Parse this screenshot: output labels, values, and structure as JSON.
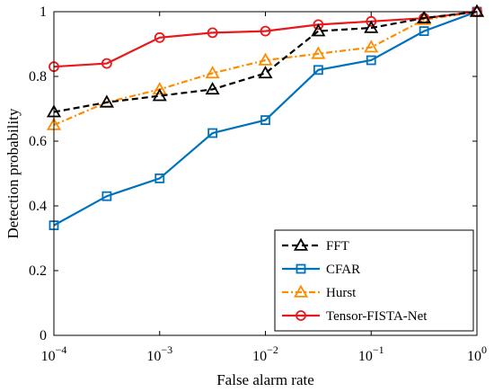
{
  "chart_data": {
    "type": "line",
    "xlabel": "False alarm rate",
    "ylabel": "Detection probability",
    "x_scale": "log",
    "xlim": [
      0.0001,
      1
    ],
    "ylim": [
      0,
      1
    ],
    "x": [
      0.0001,
      0.0003162,
      0.001,
      0.003162,
      0.01,
      0.03162,
      0.1,
      0.3162,
      1
    ],
    "x_ticks": [
      {
        "value": 0.0001,
        "base": "10",
        "exp": "−4"
      },
      {
        "value": 0.001,
        "base": "10",
        "exp": "−3"
      },
      {
        "value": 0.01,
        "base": "10",
        "exp": "−2"
      },
      {
        "value": 0.1,
        "base": "10",
        "exp": "−1"
      },
      {
        "value": 1,
        "base": "10",
        "exp": "0"
      }
    ],
    "y_ticks": [
      {
        "value": 0,
        "label": "0"
      },
      {
        "value": 0.2,
        "label": "0.2"
      },
      {
        "value": 0.4,
        "label": "0.4"
      },
      {
        "value": 0.6,
        "label": "0.6"
      },
      {
        "value": 0.8,
        "label": "0.8"
      },
      {
        "value": 1,
        "label": "1"
      }
    ],
    "grid": false,
    "legend_position": "bottom-right",
    "series": [
      {
        "name": "FFT",
        "color": "#000000",
        "dash": "dashed",
        "marker": "triangle",
        "values": [
          0.69,
          0.72,
          0.74,
          0.76,
          0.81,
          0.94,
          0.95,
          0.98,
          1.0
        ]
      },
      {
        "name": "CFAR",
        "color": "#0072bd",
        "dash": "solid",
        "marker": "square",
        "values": [
          0.34,
          0.43,
          0.485,
          0.625,
          0.665,
          0.82,
          0.85,
          0.94,
          1.0
        ]
      },
      {
        "name": "Hurst",
        "color": "#ff8c00",
        "dash": "dashdot",
        "marker": "triangle",
        "values": [
          0.65,
          0.72,
          0.76,
          0.81,
          0.85,
          0.87,
          0.89,
          0.975,
          1.0
        ]
      },
      {
        "name": "Tensor-FISTA-Net",
        "color": "#e8191c",
        "dash": "solid",
        "marker": "circle",
        "values": [
          0.83,
          0.84,
          0.92,
          0.935,
          0.94,
          0.96,
          0.97,
          0.98,
          1.0
        ]
      }
    ]
  }
}
